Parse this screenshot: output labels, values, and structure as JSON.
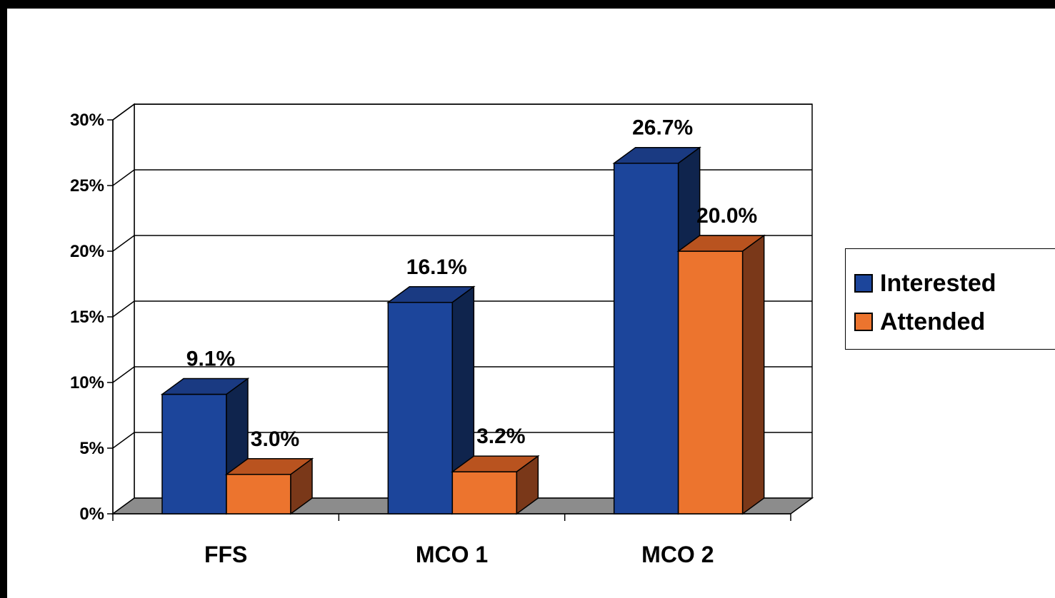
{
  "chart_data": {
    "type": "bar",
    "categories": [
      "FFS",
      "MCO 1",
      "MCO 2"
    ],
    "series": [
      {
        "name": "Interested",
        "values": [
          9.1,
          16.1,
          26.7
        ],
        "labels": [
          "9.1%",
          "16.1%",
          "26.7%"
        ],
        "color": "#1c459b",
        "side_color": "#0f244d",
        "top_color": "#1a3a82"
      },
      {
        "name": "Attended",
        "values": [
          3.0,
          3.2,
          20.0
        ],
        "labels": [
          "3.0%",
          "3.2%",
          "20.0%"
        ],
        "color": "#ec742e",
        "side_color": "#7a3819",
        "top_color": "#b9531f"
      }
    ],
    "y_ticks": [
      0,
      5,
      10,
      15,
      20,
      25,
      30
    ],
    "y_tick_labels": [
      "0%",
      "5%",
      "10%",
      "15%",
      "20%",
      "25%",
      "30%"
    ],
    "ylim": [
      0,
      30
    ],
    "title": "",
    "xlabel": "",
    "ylabel": "",
    "grid": true,
    "three_d": true,
    "legend_position": "right"
  },
  "legend": {
    "items": [
      {
        "label": "Interested",
        "color": "#1c459b"
      },
      {
        "label": "Attended",
        "color": "#ec742e"
      }
    ]
  }
}
